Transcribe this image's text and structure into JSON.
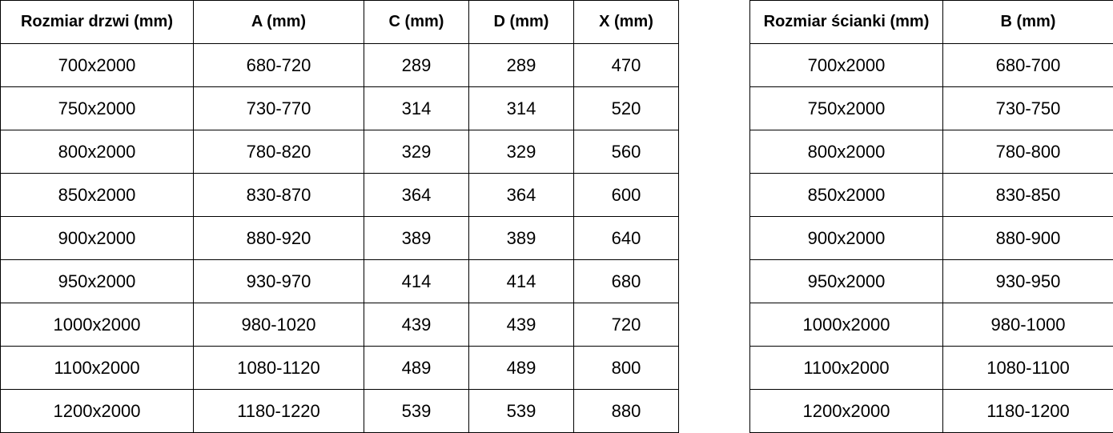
{
  "door_table": {
    "headers": [
      "Rozmiar drzwi (mm)",
      "A (mm)",
      "C (mm)",
      "D (mm)",
      "X (mm)"
    ],
    "rows": [
      [
        "700x2000",
        "680-720",
        "289",
        "289",
        "470"
      ],
      [
        "750x2000",
        "730-770",
        "314",
        "314",
        "520"
      ],
      [
        "800x2000",
        "780-820",
        "329",
        "329",
        "560"
      ],
      [
        "850x2000",
        "830-870",
        "364",
        "364",
        "600"
      ],
      [
        "900x2000",
        "880-920",
        "389",
        "389",
        "640"
      ],
      [
        "950x2000",
        "930-970",
        "414",
        "414",
        "680"
      ],
      [
        "1000x2000",
        "980-1020",
        "439",
        "439",
        "720"
      ],
      [
        "1100x2000",
        "1080-1120",
        "489",
        "489",
        "800"
      ],
      [
        "1200x2000",
        "1180-1220",
        "539",
        "539",
        "880"
      ]
    ]
  },
  "wall_table": {
    "headers": [
      "Rozmiar ścianki (mm)",
      "B (mm)"
    ],
    "rows": [
      [
        "700x2000",
        "680-700"
      ],
      [
        "750x2000",
        "730-750"
      ],
      [
        "800x2000",
        "780-800"
      ],
      [
        "850x2000",
        "830-850"
      ],
      [
        "900x2000",
        "880-900"
      ],
      [
        "950x2000",
        "930-950"
      ],
      [
        "1000x2000",
        "980-1000"
      ],
      [
        "1100x2000",
        "1080-1100"
      ],
      [
        "1200x2000",
        "1180-1200"
      ]
    ]
  }
}
